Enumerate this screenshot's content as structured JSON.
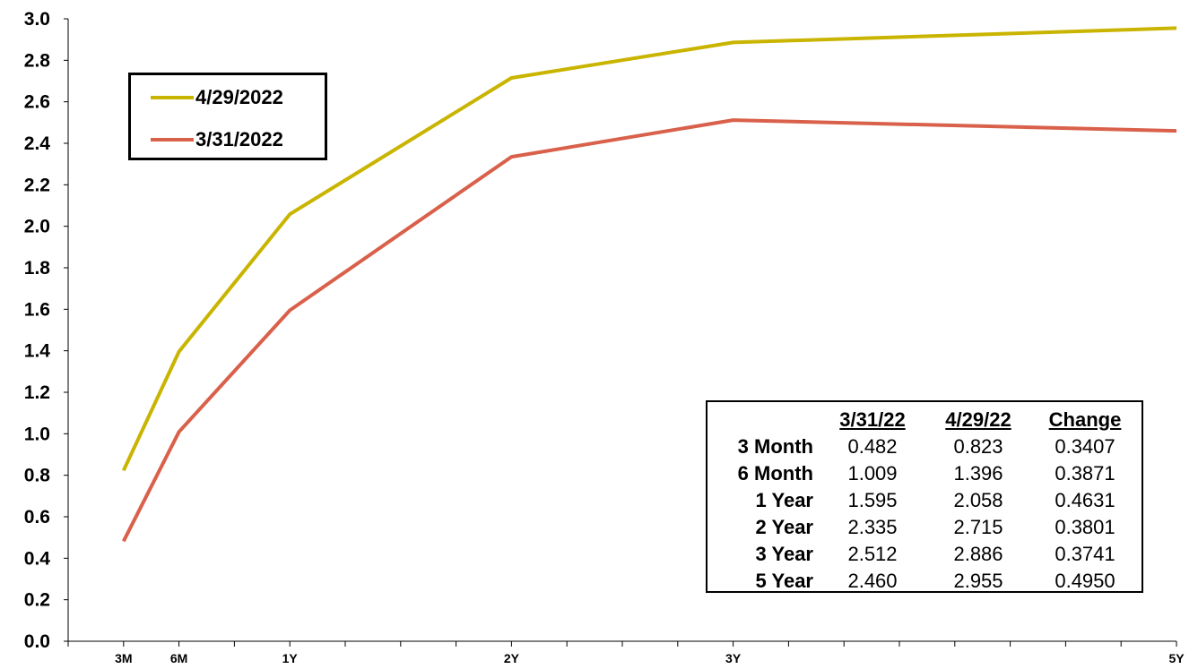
{
  "chart_data": {
    "type": "line",
    "x": [
      "3M",
      "6M",
      "1Y",
      "2Y",
      "3Y",
      "5Y"
    ],
    "x_years": [
      0.25,
      0.5,
      1,
      2,
      3,
      5
    ],
    "series": [
      {
        "name": "4/29/2022",
        "color": "#c9b400",
        "values": [
          0.823,
          1.396,
          2.058,
          2.715,
          2.886,
          2.955
        ]
      },
      {
        "name": "3/31/2022",
        "color": "#d9604a",
        "values": [
          0.482,
          1.009,
          1.595,
          2.335,
          2.512,
          2.46
        ]
      }
    ],
    "ylim": [
      0.0,
      3.0
    ],
    "yticks": [
      "0.0",
      "0.2",
      "0.4",
      "0.6",
      "0.8",
      "1.0",
      "1.2",
      "1.4",
      "1.6",
      "1.8",
      "2.0",
      "2.2",
      "2.4",
      "2.6",
      "2.8",
      "3.0"
    ],
    "grid": false,
    "legend_position": "top-left"
  },
  "legend": {
    "items": [
      {
        "label": "4/29/2022",
        "color": "#c9b400"
      },
      {
        "label": "3/31/2022",
        "color": "#d9604a"
      }
    ]
  },
  "table": {
    "headers": [
      "",
      "3/31/22",
      "4/29/22",
      "Change"
    ],
    "rows": [
      {
        "label": "3 Month",
        "v1": "0.482",
        "v2": "0.823",
        "change": "0.3407"
      },
      {
        "label": "6 Month",
        "v1": "1.009",
        "v2": "1.396",
        "change": "0.3871"
      },
      {
        "label": "1 Year",
        "v1": "1.595",
        "v2": "2.058",
        "change": "0.4631"
      },
      {
        "label": "2 Year",
        "v1": "2.335",
        "v2": "2.715",
        "change": "0.3801"
      },
      {
        "label": "3 Year",
        "v1": "2.512",
        "v2": "2.886",
        "change": "0.3741"
      },
      {
        "label": "5 Year",
        "v1": "2.460",
        "v2": "2.955",
        "change": "0.4950"
      }
    ]
  }
}
